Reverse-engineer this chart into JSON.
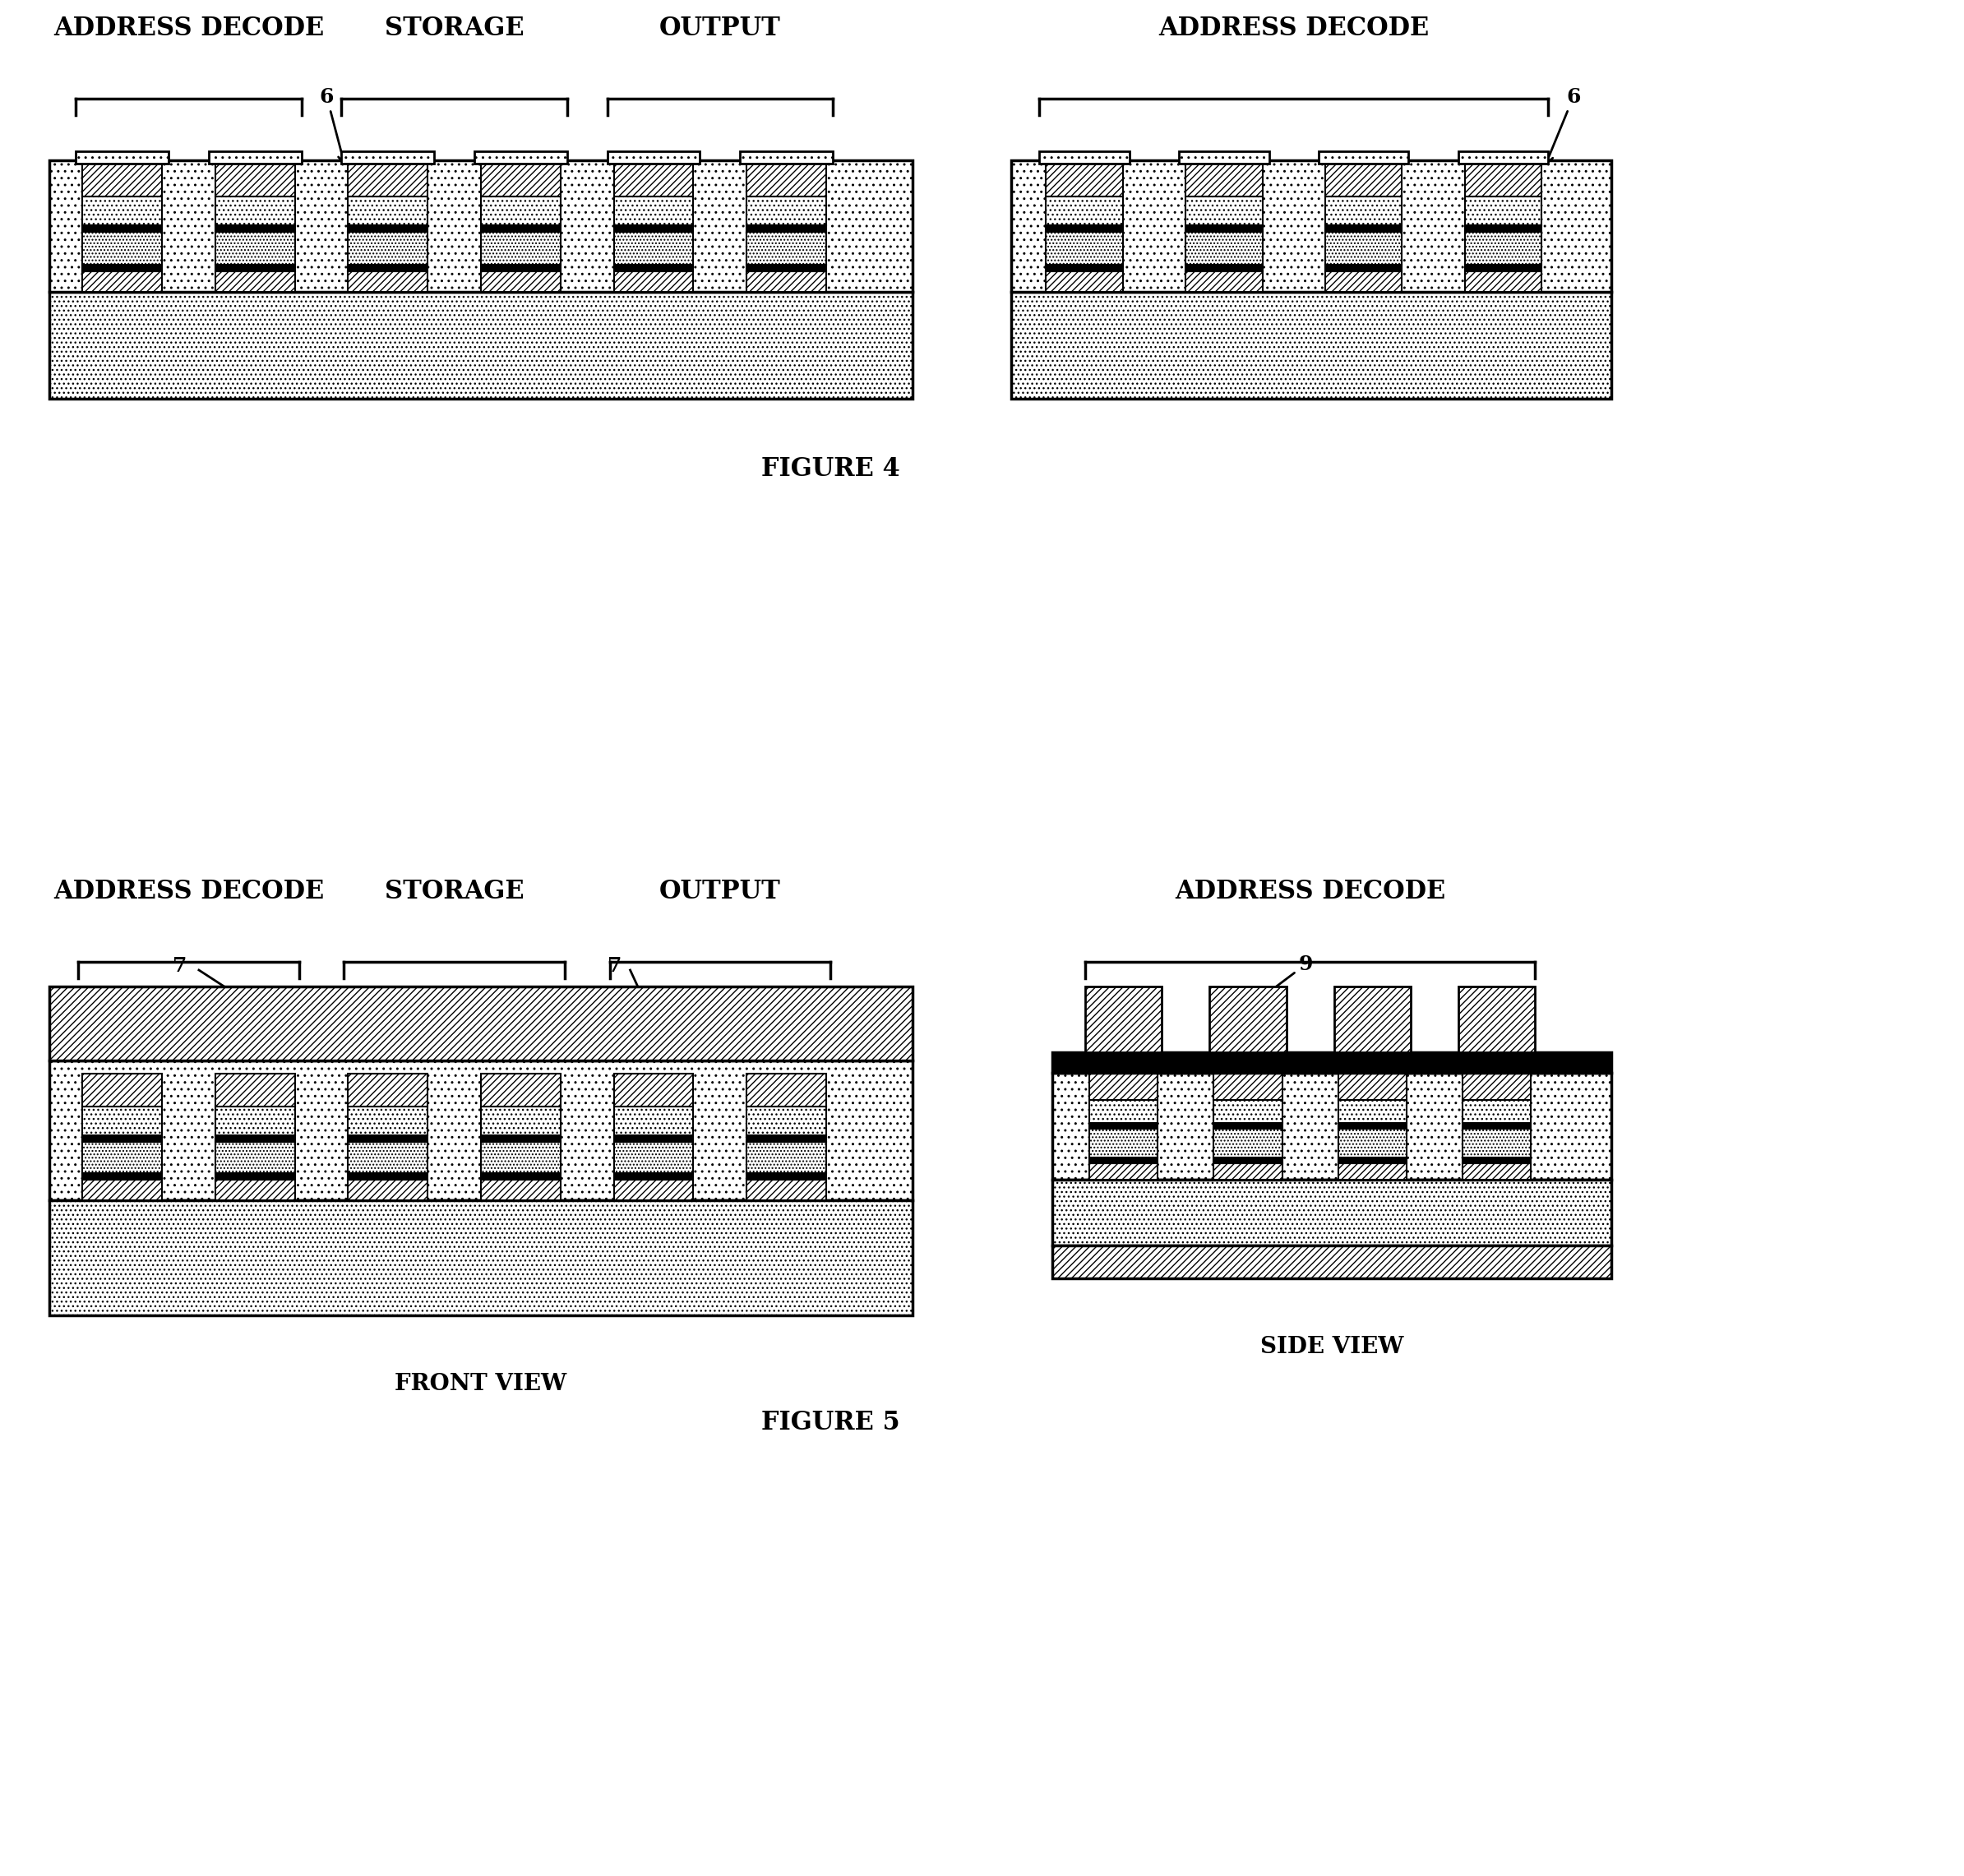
{
  "fig_width": 23.89,
  "fig_height": 22.82,
  "bg_color": "#ffffff",
  "figure4_label": "FIGURE 4",
  "figure5_label": "FIGURE 5",
  "front_view_label": "FRONT VIEW",
  "side_view_label": "SIDE VIEW",
  "label_fontsize": 22,
  "caption_fontsize": 20,
  "annot_fontsize": 18
}
